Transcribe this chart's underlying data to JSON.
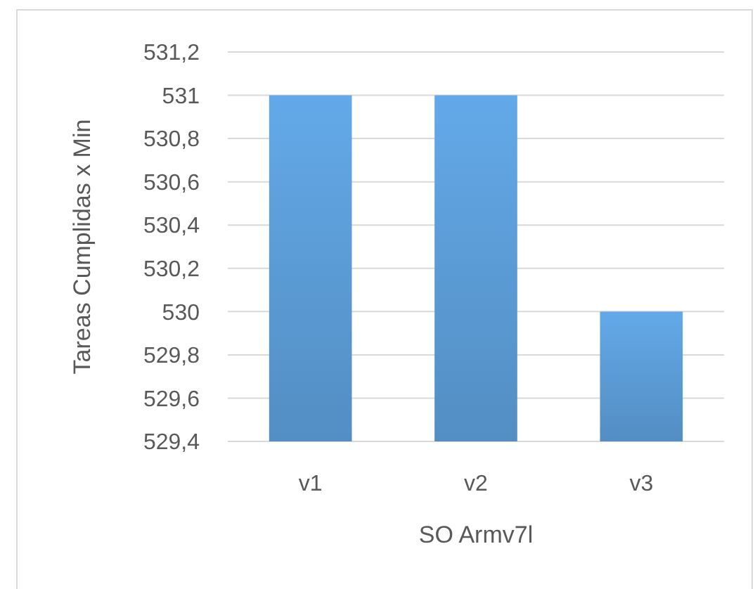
{
  "chart_data": {
    "type": "bar",
    "xlabel": "SO Armv7l",
    "ylabel": "Tareas Cumplidas x Min",
    "categories": [
      "v1",
      "v2",
      "v3"
    ],
    "values": [
      531,
      531,
      530
    ],
    "color": "#5b9bd5",
    "ylim": [
      529.4,
      531.2
    ],
    "yticks": [
      {
        "value": 529.4,
        "label": "529,4"
      },
      {
        "value": 529.6,
        "label": "529,6"
      },
      {
        "value": 529.8,
        "label": "529,8"
      },
      530,
      {
        "value": 530.2,
        "label": "530,2"
      },
      {
        "value": 530.4,
        "label": "530,4"
      },
      {
        "value": 530.6,
        "label": "530,6"
      },
      {
        "value": 530.8,
        "label": "530,8"
      },
      531,
      {
        "value": 531.2,
        "label": "531,2"
      }
    ],
    "grid": "y"
  }
}
